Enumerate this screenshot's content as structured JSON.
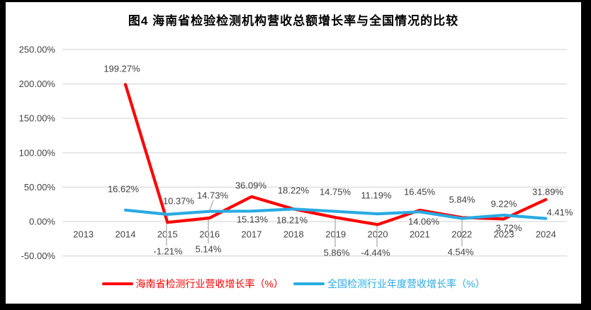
{
  "colors": {
    "frame": "#000000",
    "canvas": "#ffffff",
    "grid": "#d9d9d9",
    "leader": "#a6a6a6",
    "label": "#404040",
    "hainan_red": "#ff0000",
    "national_blue": "#29abe2"
  },
  "chart_data": {
    "type": "line",
    "title": "图4 海南省检验检测机构营收总额增长率与全国情况的比较",
    "categories": [
      "2013",
      "2014",
      "2015",
      "2016",
      "2017",
      "2018",
      "2019",
      "2020",
      "2021",
      "2022",
      "2023",
      "2024"
    ],
    "y_axis": {
      "ticks": [
        "250.00%",
        "200.00%",
        "150.00%",
        "100.00%",
        "50.00%",
        "0.00%",
        "-50.00%"
      ],
      "max": 250,
      "min": -50,
      "step": 50
    },
    "grid": true,
    "legend_position": "bottom",
    "series": [
      {
        "name": "海南省检测行业营收增长率（%）",
        "color": "#ff0000",
        "values": [
          null,
          199.27,
          -1.21,
          5.14,
          36.09,
          18.22,
          5.86,
          -4.44,
          16.45,
          5.84,
          3.72,
          31.89
        ],
        "labels": [
          null,
          "199.27%",
          "-1.21%",
          "5.14%",
          "36.09%",
          "18.22%",
          "5.86%",
          "-4.44%",
          "16.45%",
          "5.84%",
          "3.72%",
          "31.89%"
        ]
      },
      {
        "name": "全国检测行业年度营收增长率（%）",
        "color": "#29abe2",
        "values": [
          null,
          16.62,
          10.37,
          14.73,
          15.13,
          18.21,
          14.75,
          11.19,
          14.06,
          4.54,
          9.22,
          4.41
        ],
        "labels": [
          null,
          "16.62%",
          "10.37%",
          "14.73%",
          "15.13%",
          "18.21%",
          "14.75%",
          "11.19%",
          "14.06%",
          "4.54%",
          "9.22%",
          "4.41%"
        ]
      }
    ]
  }
}
